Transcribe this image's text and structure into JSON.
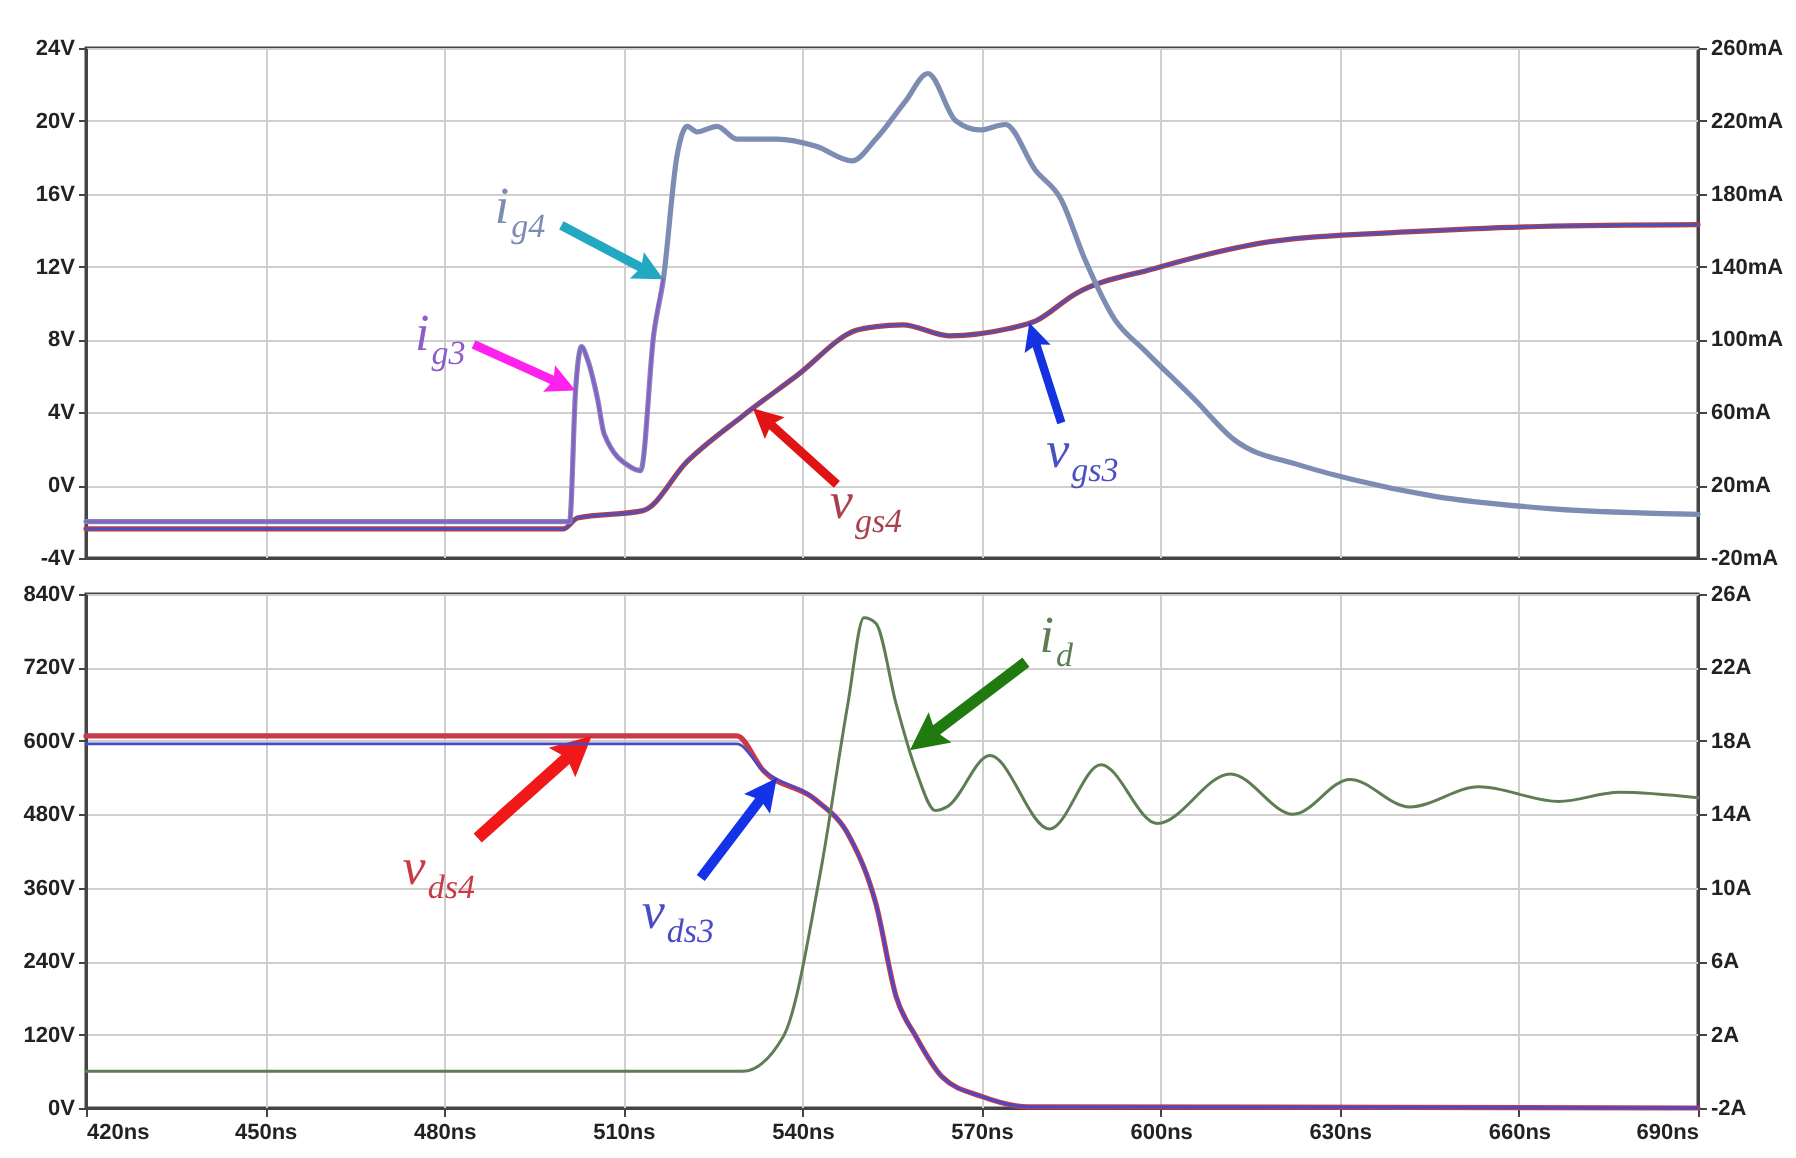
{
  "chart_data": [
    {
      "type": "line",
      "xlim": [
        420,
        690
      ],
      "xticks": [
        {
          "value": 420,
          "label": null
        },
        {
          "value": 450,
          "label": null
        },
        {
          "value": 480,
          "label": null
        },
        {
          "value": 510,
          "label": null
        },
        {
          "value": 540,
          "label": null
        },
        {
          "value": 570,
          "label": null
        },
        {
          "value": 600,
          "label": null
        },
        {
          "value": 630,
          "label": null
        },
        {
          "value": 660,
          "label": null
        },
        {
          "value": 690,
          "label": null
        }
      ],
      "ylim": [
        -4,
        24
      ],
      "yticks": [
        {
          "value": -4,
          "label": "-4V"
        },
        {
          "value": 0,
          "label": "0V"
        },
        {
          "value": 4,
          "label": "4V"
        },
        {
          "value": 8,
          "label": "8V"
        },
        {
          "value": 12,
          "label": "12V"
        },
        {
          "value": 16,
          "label": "16V"
        },
        {
          "value": 20,
          "label": "20V"
        },
        {
          "value": 24,
          "label": "24V"
        }
      ],
      "y2lim": [
        -20,
        260
      ],
      "y2ticks": [
        {
          "value": -20,
          "label": "-20mA"
        },
        {
          "value": 20,
          "label": "20mA"
        },
        {
          "value": 60,
          "label": "60mA"
        },
        {
          "value": 100,
          "label": "100mA"
        },
        {
          "value": 140,
          "label": "140mA"
        },
        {
          "value": 180,
          "label": "180mA"
        },
        {
          "value": 220,
          "label": "220mA"
        },
        {
          "value": 260,
          "label": "260mA"
        }
      ],
      "grid": true,
      "tick_labels": "y",
      "series": [
        {
          "name": "i$_{g4}$",
          "color": "#7d8cb3",
          "axis": "y2",
          "x": [
            420,
            501,
            502,
            503,
            504,
            505.7,
            506.8,
            511.2,
            512.9,
            515.1,
            516.7,
            519,
            520.7,
            522.3,
            525.7,
            529,
            535.7,
            542.3,
            548.3,
            552.3,
            557.3,
            561,
            565.7,
            569.7,
            574,
            579,
            583.3,
            587.3,
            592.3,
            597.3,
            605.7,
            612.3,
            623.3,
            632.3,
            645.7,
            665.7,
            690
          ],
          "values": [
            0,
            0,
            72,
            96,
            89,
            67,
            48,
            30,
            28,
            103,
            133,
            201,
            217,
            214,
            217,
            210,
            210,
            206,
            198,
            210,
            231,
            246,
            220,
            215,
            218,
            193,
            177,
            144,
            111,
            94,
            67,
            45,
            31,
            23,
            14,
            7,
            4
          ]
        },
        {
          "name": "i$_{g3}$",
          "color": "#8c5cc8",
          "axis": "y2",
          "x": [
            420,
            501,
            502,
            503,
            504,
            505.7,
            506.8,
            511.2,
            512.9,
            515.1,
            516.7
          ],
          "values": [
            0,
            0,
            72,
            96,
            89,
            67,
            48,
            30,
            28,
            103,
            133
          ]
        },
        {
          "name": "v$_{gs4}$",
          "color": "#a8404f",
          "x": [
            420,
            500,
            502.3,
            513.3,
            520.7,
            530,
            539,
            549,
            552.3,
            556.8,
            564.6,
            574.6,
            579,
            585.7,
            599,
            619,
            641.2,
            663.3,
            690
          ],
          "values": [
            -2.4,
            -2.4,
            -1.8,
            -1.4,
            1.3,
            3.8,
            6.0,
            8.5,
            8.7,
            8.8,
            8.2,
            8.6,
            9.0,
            10.5,
            11.9,
            13.4,
            13.9,
            14.2,
            14.3
          ]
        },
        {
          "name": "v$_{gs3}$",
          "color": "#4a50c0",
          "x": [
            420,
            500,
            502.3,
            513.3,
            520.7,
            530,
            539,
            549,
            552.3,
            556.8,
            564.6,
            574.6,
            579,
            585.7,
            599,
            619,
            641.2,
            663.3,
            690
          ],
          "values": [
            -2.4,
            -2.4,
            -1.8,
            -1.4,
            1.3,
            3.8,
            6.0,
            8.5,
            8.7,
            8.8,
            8.2,
            8.6,
            9.0,
            10.5,
            11.9,
            13.4,
            13.9,
            14.2,
            14.3
          ]
        }
      ]
    },
    {
      "type": "line",
      "xlim": [
        420,
        690
      ],
      "xticks": [
        {
          "value": 420,
          "label": "420ns"
        },
        {
          "value": 450,
          "label": "450ns"
        },
        {
          "value": 480,
          "label": "480ns"
        },
        {
          "value": 510,
          "label": "510ns"
        },
        {
          "value": 540,
          "label": "540ns"
        },
        {
          "value": 570,
          "label": "570ns"
        },
        {
          "value": 600,
          "label": "600ns"
        },
        {
          "value": 630,
          "label": "630ns"
        },
        {
          "value": 660,
          "label": "660ns"
        },
        {
          "value": 690,
          "label": "690ns"
        }
      ],
      "ylim": [
        0,
        840
      ],
      "yticks": [
        {
          "value": 0,
          "label": "0V"
        },
        {
          "value": 120,
          "label": "120V"
        },
        {
          "value": 240,
          "label": "240V"
        },
        {
          "value": 360,
          "label": "360V"
        },
        {
          "value": 480,
          "label": "480V"
        },
        {
          "value": 600,
          "label": "600V"
        },
        {
          "value": 720,
          "label": "720V"
        },
        {
          "value": 840,
          "label": "840V"
        }
      ],
      "y2lim": [
        -2,
        26
      ],
      "y2ticks": [
        {
          "value": -2,
          "label": "-2A"
        },
        {
          "value": 2,
          "label": "2A"
        },
        {
          "value": 6,
          "label": "6A"
        },
        {
          "value": 10,
          "label": "10A"
        },
        {
          "value": 14,
          "label": "14A"
        },
        {
          "value": 18,
          "label": "18A"
        },
        {
          "value": 22,
          "label": "22A"
        },
        {
          "value": 26,
          "label": "26A"
        }
      ],
      "grid": true,
      "series": [
        {
          "name": "v$_{ds4}$",
          "color": "#c83a4a",
          "x": [
            420,
            529,
            533.4,
            542.3,
            547.9,
            552.3,
            555.7,
            559,
            563.4,
            570,
            577.9,
            690
          ],
          "values": [
            608,
            608,
            552,
            503,
            443,
            334,
            182,
            117,
            51,
            19,
            2,
            0
          ]
        },
        {
          "name": "v$_{ds3}$",
          "color": "#4a4ac8",
          "x": [
            420,
            529,
            533.4,
            542.3,
            547.9,
            552.3,
            555.7,
            559,
            563.4,
            570,
            577.9,
            690
          ],
          "values": [
            595,
            595,
            552,
            503,
            443,
            334,
            182,
            117,
            51,
            19,
            2,
            0
          ]
        },
        {
          "name": "i$_{d}$",
          "color": "#5e7d55",
          "axis": "y2",
          "x": [
            420,
            530,
            536.8,
            543.1,
            547.6,
            550.3,
            552.3,
            555.7,
            559,
            562.3,
            564.2,
            571.4,
            581.4,
            590,
            599.4,
            611.7,
            622.2,
            631.7,
            641.7,
            653.3,
            666.7,
            676.8,
            690
          ],
          "values": [
            0,
            0,
            1.9,
            11.0,
            20.0,
            24.7,
            24.4,
            20.0,
            16.4,
            14.2,
            14.4,
            17.2,
            13.2,
            16.7,
            13.5,
            16.2,
            14.0,
            15.9,
            14.4,
            15.5,
            14.7,
            15.2,
            14.9
          ]
        }
      ]
    }
  ]
}
